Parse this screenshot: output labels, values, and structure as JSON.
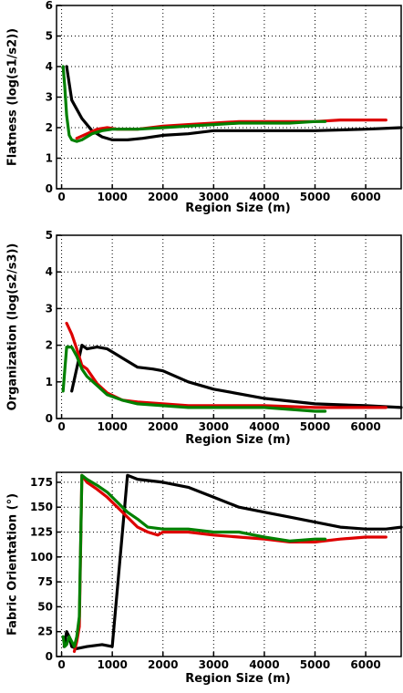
{
  "chart_data": [
    {
      "type": "line",
      "xlabel": "Region Size (m)",
      "ylabel": "Flatness (log(s1/s2))",
      "xlim": [
        -100,
        6700
      ],
      "ylim": [
        0,
        6
      ],
      "xticks": [
        0,
        1000,
        2000,
        3000,
        4000,
        5000,
        6000
      ],
      "yticks": [
        0,
        1,
        2,
        3,
        4,
        5,
        6
      ],
      "grid": true,
      "colors": {
        "black": "#000000",
        "red": "#dd0000",
        "green": "#008000"
      },
      "series": [
        {
          "color": "black",
          "x": [
            100,
            200,
            400,
            600,
            800,
            1000,
            1300,
            1600,
            2000,
            2500,
            3000,
            3500,
            4000,
            5000,
            6000,
            6700
          ],
          "y": [
            4.0,
            2.9,
            2.3,
            1.9,
            1.7,
            1.6,
            1.6,
            1.65,
            1.75,
            1.8,
            1.9,
            1.9,
            1.9,
            1.9,
            1.95,
            2.0
          ]
        },
        {
          "color": "red",
          "x": [
            300,
            500,
            700,
            900,
            1100,
            1500,
            2000,
            2500,
            3000,
            3500,
            4000,
            4500,
            5000,
            5500,
            6000,
            6400
          ],
          "y": [
            1.65,
            1.8,
            1.95,
            2.0,
            1.95,
            1.95,
            2.05,
            2.1,
            2.15,
            2.2,
            2.2,
            2.2,
            2.2,
            2.25,
            2.25,
            2.25
          ]
        },
        {
          "color": "green",
          "x": [
            30,
            60,
            100,
            150,
            200,
            300,
            400,
            600,
            800,
            1000,
            1500,
            2000,
            2500,
            3000,
            3500,
            4000,
            4500,
            5000,
            5200
          ],
          "y": [
            4.0,
            3.4,
            2.4,
            1.75,
            1.6,
            1.55,
            1.6,
            1.8,
            1.9,
            1.95,
            1.95,
            2.0,
            2.05,
            2.1,
            2.15,
            2.15,
            2.15,
            2.2,
            2.2
          ]
        }
      ]
    },
    {
      "type": "line",
      "xlabel": "Region Size (m)",
      "ylabel": "Organization (log(s2/s3))",
      "xlim": [
        -100,
        6700
      ],
      "ylim": [
        0,
        5
      ],
      "xticks": [
        0,
        1000,
        2000,
        3000,
        4000,
        5000,
        6000
      ],
      "yticks": [
        0,
        1,
        2,
        3,
        4,
        5
      ],
      "grid": true,
      "colors": {
        "black": "#000000",
        "red": "#dd0000",
        "green": "#008000"
      },
      "series": [
        {
          "color": "black",
          "x": [
            200,
            400,
            500,
            700,
            900,
            1200,
            1500,
            1800,
            2000,
            2500,
            3000,
            4000,
            5000,
            6000,
            6700
          ],
          "y": [
            0.75,
            2.0,
            1.9,
            1.95,
            1.9,
            1.65,
            1.4,
            1.35,
            1.3,
            1.0,
            0.8,
            0.55,
            0.4,
            0.35,
            0.3
          ]
        },
        {
          "color": "red",
          "x": [
            100,
            200,
            300,
            400,
            500,
            700,
            900,
            1200,
            1500,
            2000,
            2500,
            3000,
            4000,
            5000,
            6000,
            6400
          ],
          "y": [
            2.6,
            2.3,
            1.9,
            1.45,
            1.35,
            0.95,
            0.7,
            0.5,
            0.45,
            0.4,
            0.35,
            0.35,
            0.35,
            0.3,
            0.3,
            0.3
          ]
        },
        {
          "color": "green",
          "x": [
            30,
            100,
            200,
            300,
            400,
            500,
            700,
            900,
            1200,
            1500,
            2000,
            2500,
            3000,
            4000,
            5000,
            5200
          ],
          "y": [
            0.75,
            1.95,
            1.95,
            1.7,
            1.35,
            1.15,
            0.9,
            0.65,
            0.5,
            0.4,
            0.35,
            0.3,
            0.3,
            0.3,
            0.2,
            0.2
          ]
        }
      ]
    },
    {
      "type": "line",
      "xlabel": "Region Size (m)",
      "ylabel": "Fabric Orientation (°)",
      "xlim": [
        -100,
        6700
      ],
      "ylim": [
        0,
        185
      ],
      "xticks": [
        0,
        1000,
        2000,
        3000,
        4000,
        5000,
        6000
      ],
      "yticks": [
        0,
        25,
        50,
        75,
        100,
        125,
        150,
        175
      ],
      "grid": true,
      "colors": {
        "black": "#000000",
        "red": "#dd0000",
        "green": "#008000"
      },
      "series": [
        {
          "color": "black",
          "x": [
            50,
            100,
            150,
            200,
            300,
            500,
            800,
            1000,
            1300,
            1500,
            2000,
            2500,
            3000,
            3500,
            4000,
            4500,
            5000,
            5500,
            6000,
            6400,
            6700
          ],
          "y": [
            10,
            25,
            20,
            10,
            8,
            10,
            12,
            10,
            182,
            178,
            175,
            170,
            160,
            150,
            145,
            140,
            135,
            130,
            128,
            128,
            130
          ]
        },
        {
          "color": "red",
          "x": [
            250,
            300,
            350,
            400,
            500,
            700,
            900,
            1100,
            1300,
            1500,
            1700,
            1900,
            2000,
            2500,
            3000,
            3500,
            4000,
            4500,
            5000,
            5500,
            6000,
            6400
          ],
          "y": [
            5,
            15,
            30,
            182,
            175,
            168,
            160,
            150,
            140,
            130,
            125,
            122,
            125,
            125,
            122,
            120,
            118,
            115,
            115,
            118,
            120,
            120
          ]
        },
        {
          "color": "green",
          "x": [
            30,
            60,
            100,
            150,
            250,
            300,
            350,
            400,
            500,
            700,
            900,
            1100,
            1300,
            1500,
            1700,
            2000,
            2500,
            3000,
            3500,
            4000,
            4500,
            5000,
            5200
          ],
          "y": [
            20,
            10,
            12,
            20,
            10,
            20,
            40,
            182,
            178,
            172,
            165,
            155,
            145,
            138,
            130,
            128,
            128,
            125,
            125,
            120,
            116,
            118,
            118
          ]
        }
      ]
    }
  ]
}
